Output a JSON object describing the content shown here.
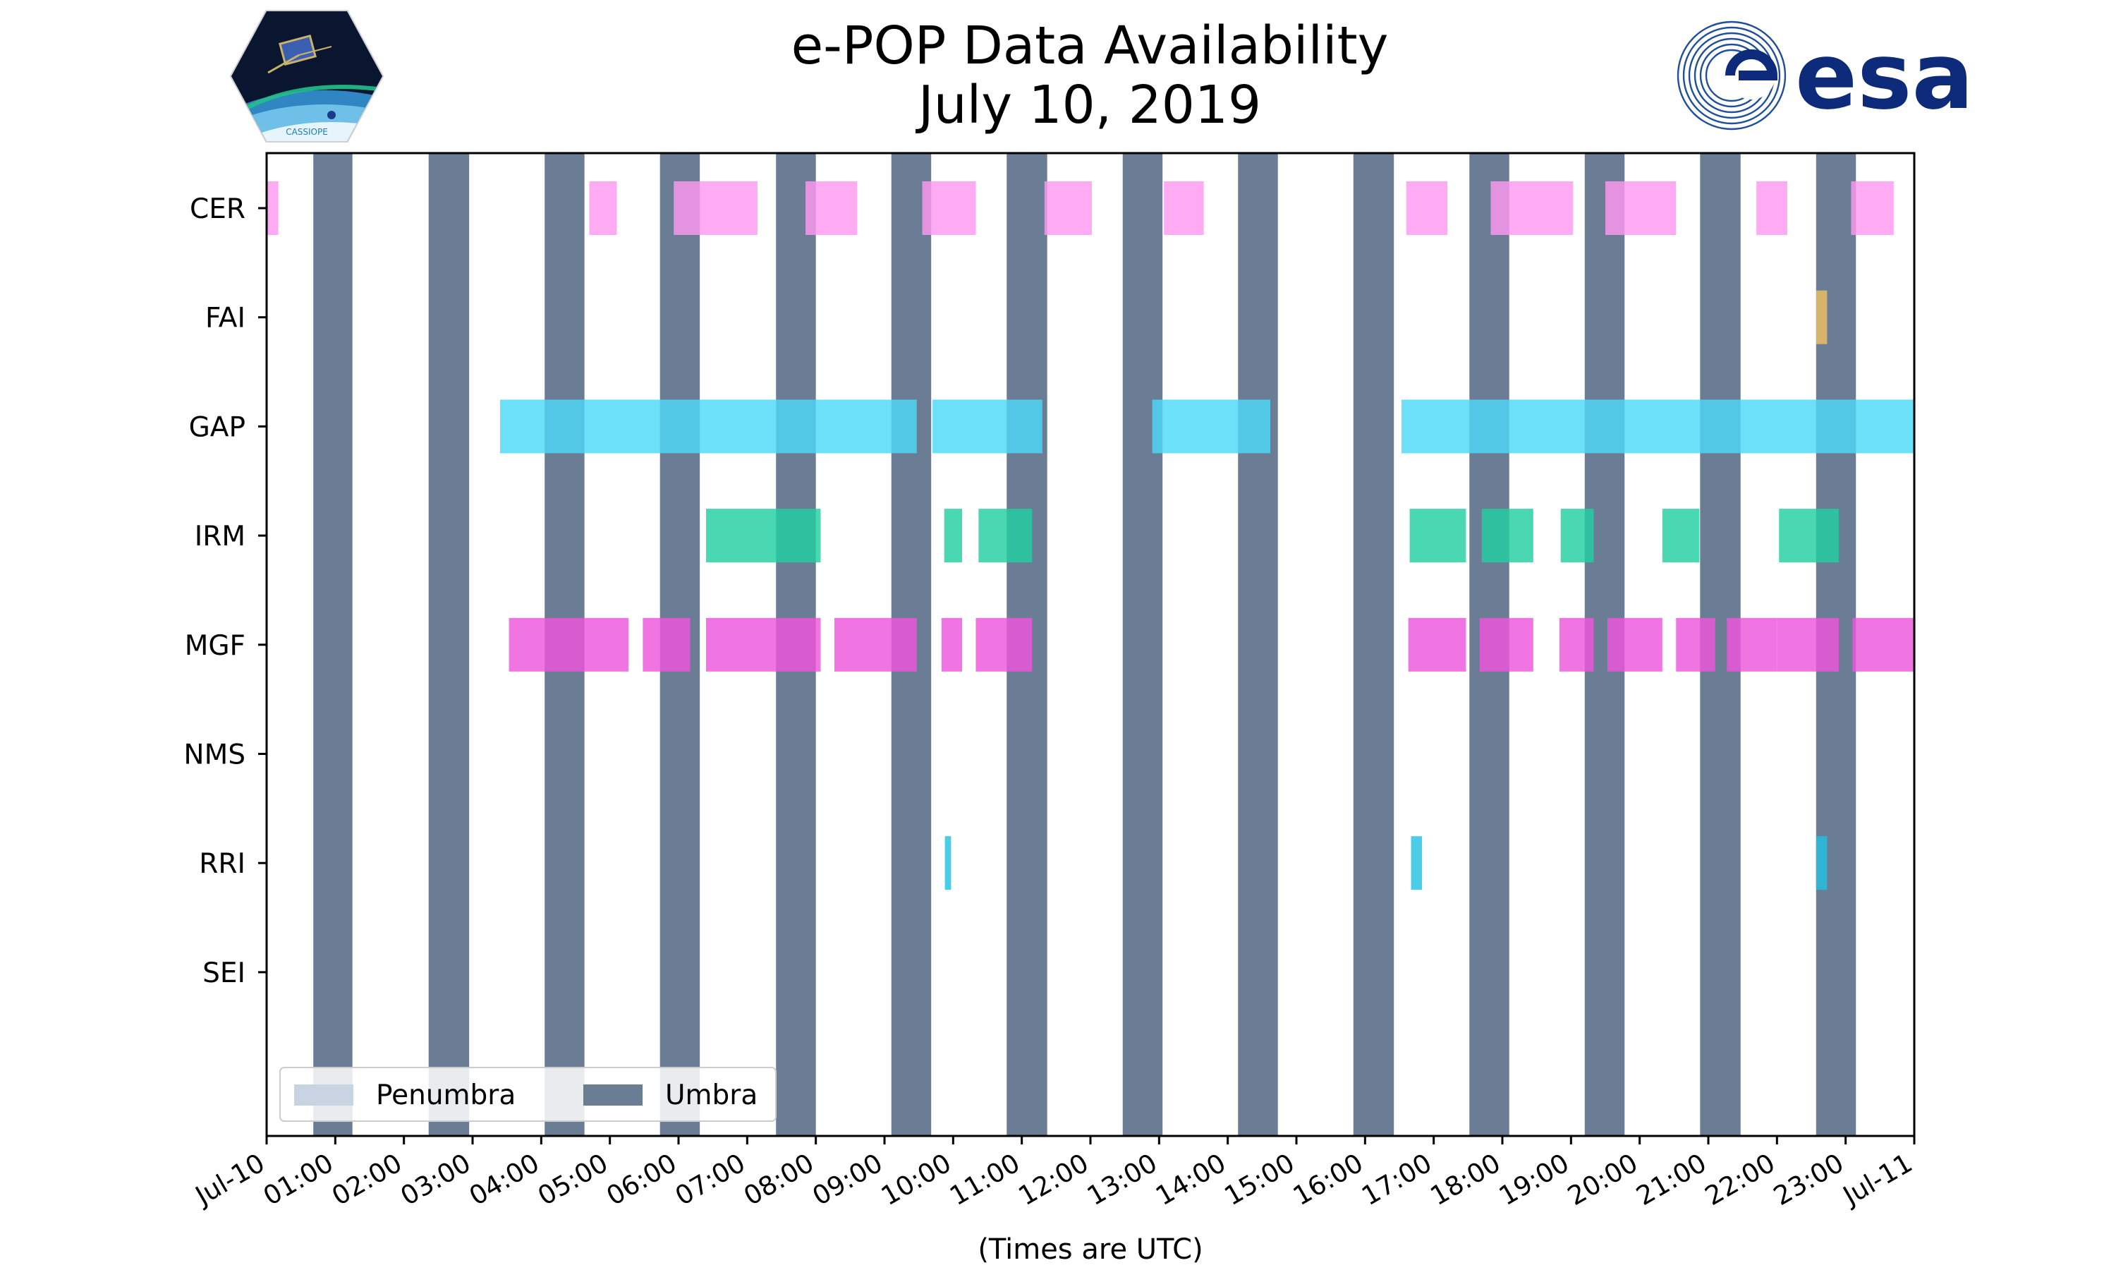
{
  "header": {
    "title": "e-POP Data Availability",
    "subtitle": "July 10, 2019"
  },
  "logos": {
    "left_text": "CASSIOPE",
    "right_text": "esa"
  },
  "chart_data": {
    "type": "timeline",
    "title": "e-POP Data Availability",
    "subtitle": "July 10, 2019",
    "xlabel": "(Times are UTC)",
    "ylabel": "",
    "xlim": [
      0,
      24
    ],
    "x_unit": "hours UTC",
    "x_tick_labels": [
      "Jul-10",
      "01:00",
      "02:00",
      "03:00",
      "04:00",
      "05:00",
      "06:00",
      "07:00",
      "08:00",
      "09:00",
      "10:00",
      "11:00",
      "12:00",
      "13:00",
      "14:00",
      "15:00",
      "16:00",
      "17:00",
      "18:00",
      "19:00",
      "20:00",
      "21:00",
      "22:00",
      "23:00",
      "Jul-11"
    ],
    "instruments": [
      "CER",
      "FAI",
      "GAP",
      "IRM",
      "MGF",
      "NMS",
      "RRI",
      "SEI"
    ],
    "colors": {
      "CER": "#ff99f0",
      "FAI": "#f0c060",
      "GAP": "#4dd9f8",
      "IRM": "#22d0a2",
      "MGF": "#ee55dd",
      "RRI": "#22c2e0",
      "umbra": "#6a7d94",
      "penumbra": "#c8d4e4"
    },
    "umbra": [
      [
        0.68,
        1.25
      ],
      [
        2.36,
        2.95
      ],
      [
        4.05,
        4.63
      ],
      [
        5.73,
        6.31
      ],
      [
        7.42,
        8.0
      ],
      [
        9.1,
        9.68
      ],
      [
        10.78,
        11.37
      ],
      [
        12.47,
        13.05
      ],
      [
        14.15,
        14.73
      ],
      [
        15.83,
        16.42
      ],
      [
        17.52,
        18.1
      ],
      [
        19.2,
        19.78
      ],
      [
        20.88,
        21.47
      ],
      [
        22.57,
        23.15
      ]
    ],
    "penumbra": [],
    "bars": {
      "CER": [
        [
          0.0,
          0.17
        ],
        [
          4.7,
          5.1
        ],
        [
          5.93,
          7.15
        ],
        [
          7.85,
          8.6
        ],
        [
          9.55,
          10.33
        ],
        [
          11.33,
          12.02
        ],
        [
          13.07,
          13.65
        ],
        [
          16.6,
          17.2
        ],
        [
          17.83,
          19.03
        ],
        [
          19.5,
          20.53
        ],
        [
          21.7,
          22.15
        ],
        [
          23.08,
          23.7
        ]
      ],
      "FAI": [
        [
          22.57,
          22.73
        ]
      ],
      "GAP": [
        [
          3.4,
          9.47
        ],
        [
          9.7,
          11.3
        ],
        [
          12.9,
          14.62
        ],
        [
          16.53,
          24.0
        ]
      ],
      "IRM": [
        [
          6.4,
          8.07
        ],
        [
          9.87,
          10.13
        ],
        [
          10.37,
          11.15
        ],
        [
          16.65,
          17.47
        ],
        [
          17.7,
          18.45
        ],
        [
          18.85,
          19.33
        ],
        [
          20.33,
          20.87
        ],
        [
          22.03,
          22.9
        ]
      ],
      "MGF": [
        [
          3.53,
          5.27
        ],
        [
          5.48,
          6.17
        ],
        [
          6.4,
          8.07
        ],
        [
          8.27,
          9.47
        ],
        [
          9.83,
          10.13
        ],
        [
          10.33,
          11.15
        ],
        [
          16.63,
          17.47
        ],
        [
          17.67,
          18.45
        ],
        [
          18.83,
          19.33
        ],
        [
          19.53,
          20.33
        ],
        [
          20.53,
          21.1
        ],
        [
          21.27,
          22.0
        ],
        [
          22.0,
          22.9
        ],
        [
          23.1,
          24.0
        ]
      ],
      "NMS": [],
      "RRI": [
        [
          9.88,
          9.97
        ],
        [
          16.67,
          16.83
        ],
        [
          22.57,
          22.73
        ]
      ],
      "SEI": []
    },
    "legend": {
      "position": "lower left",
      "entries": [
        {
          "name": "Penumbra",
          "color": "#c8d4e4"
        },
        {
          "name": "Umbra",
          "color": "#6a7d94"
        }
      ]
    },
    "grid": false
  }
}
